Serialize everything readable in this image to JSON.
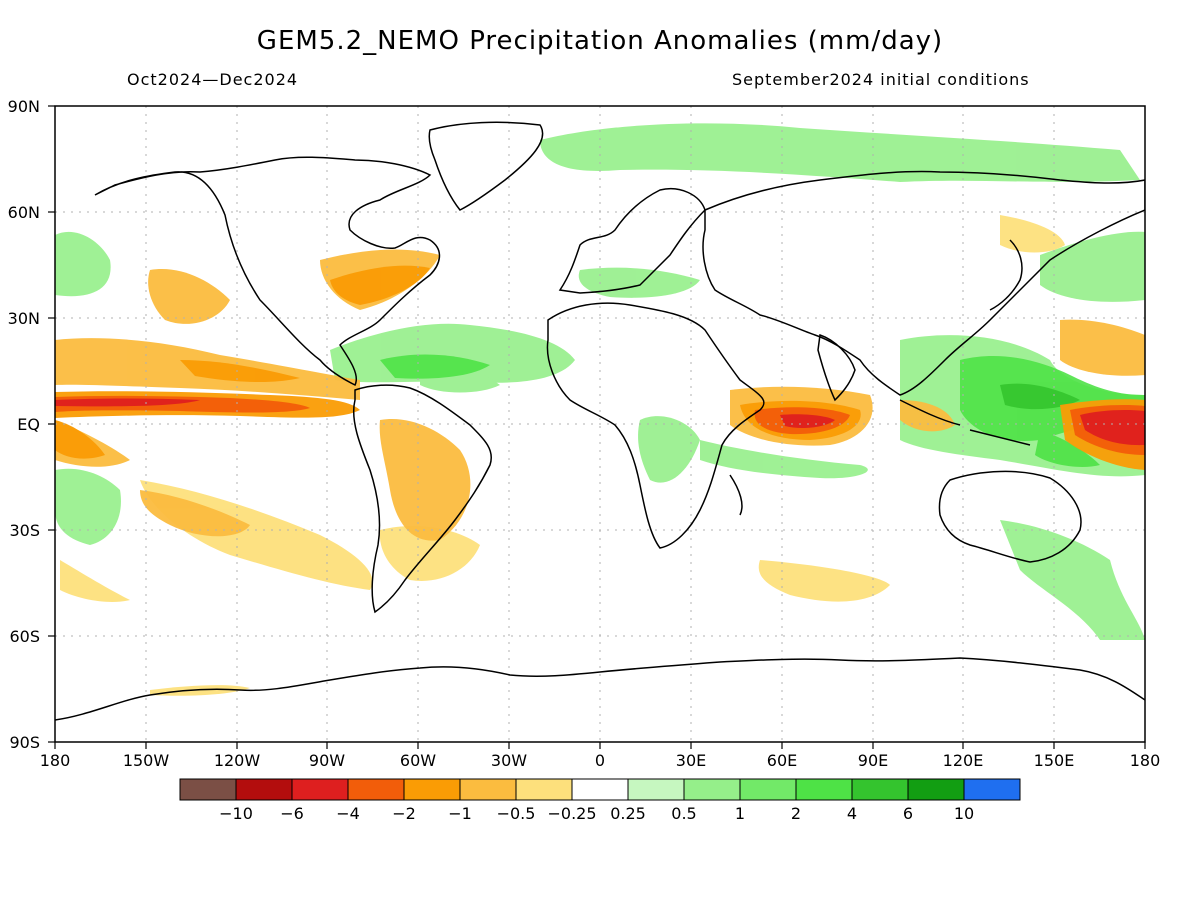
{
  "title": "GEM5.2_NEMO Precipitation Anomalies (mm/day)",
  "period": "Oct2024—Dec2024",
  "initial_conditions": "September2024 initial conditions",
  "lat_ticks": [
    "90N",
    "60N",
    "30N",
    "EQ",
    "30S",
    "60S",
    "90S"
  ],
  "lon_ticks": [
    "180",
    "150W",
    "120W",
    "90W",
    "60W",
    "30W",
    "0",
    "30E",
    "60E",
    "90E",
    "120E",
    "150E",
    "180"
  ],
  "colorbar": {
    "colors": [
      "#7b4f45",
      "#b30d0d",
      "#de1f1f",
      "#f25d0a",
      "#fa9c05",
      "#fbbc3f",
      "#fde07c",
      "#ffffff",
      "#c6f7c0",
      "#95ef8a",
      "#72e968",
      "#4ee246",
      "#34c42e",
      "#129e12",
      "#1f6ff0"
    ],
    "labels": [
      "−10",
      "−6",
      "−4",
      "−2",
      "−1",
      "−0.5",
      "−0.25",
      "0.25",
      "0.5",
      "1",
      "2",
      "4",
      "6",
      "10"
    ]
  },
  "legend_colors": {
    "land_outline": "#000000",
    "grid": "#b0b0b0"
  }
}
